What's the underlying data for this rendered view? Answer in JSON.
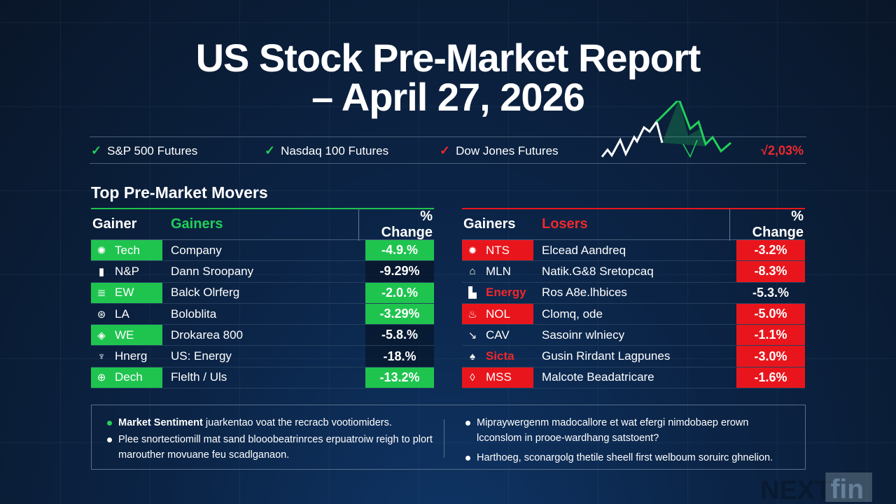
{
  "title": {
    "line1": "US Stock Pre-Market Report",
    "line2": "– April 27, 2026"
  },
  "futures": [
    {
      "label": "S&P 500 Futures",
      "icon": "check-up-icon",
      "color": "#22d05a"
    },
    {
      "label": "Nasdaq 100 Futures",
      "icon": "check-up-icon",
      "color": "#22d05a"
    },
    {
      "label": "Dow Jones Futures",
      "icon": "check-down-icon",
      "color": "#f0282c"
    }
  ],
  "futures_change": "√2,03%",
  "section_title": "Top Pre-Market Movers",
  "colors": {
    "green": "#1fc44f",
    "red": "#e8161c"
  },
  "gainers": {
    "header": {
      "col1": "Gainer",
      "col2": "Gainers",
      "col3": "% Change"
    },
    "rows": [
      {
        "ticker": "Tech",
        "company": "Company",
        "change": "-4.9.%",
        "icon": "gear-icon",
        "tick_hl": true,
        "chg_hl": true
      },
      {
        "ticker": "N&P",
        "company": "Dann Sroopany",
        "change": "-9.29%",
        "icon": "bar-chart-icon",
        "tick_hl": false,
        "chg_hl": false
      },
      {
        "ticker": "EW",
        "company": "Balck Olrferg",
        "change": "-2.0.%",
        "icon": "lines-icon",
        "tick_hl": true,
        "chg_hl": true
      },
      {
        "ticker": "LA",
        "company": "Boloblita",
        "change": "-3.29%",
        "icon": "plane-icon",
        "tick_hl": false,
        "chg_hl": true
      },
      {
        "ticker": "WE",
        "company": "Drokarea 800",
        "change": "-5.8.%",
        "icon": "arrows-icon",
        "tick_hl": true,
        "chg_hl": false
      },
      {
        "ticker": "Hnerg",
        "company": "US: Energy",
        "change": "-18.%",
        "icon": "energy-icon",
        "tick_hl": false,
        "chg_hl": false
      },
      {
        "ticker": "Dech",
        "company": "Flelth / Uls",
        "change": "-13.2%",
        "icon": "globe-icon",
        "tick_hl": true,
        "chg_hl": true
      }
    ]
  },
  "losers": {
    "header": {
      "col1": "Gainers",
      "col2": "Losers",
      "col3": "% Change"
    },
    "rows": [
      {
        "ticker": "NTS",
        "company": "Elcead Aandreq",
        "change": "-3.2%",
        "icon": "flame-icon",
        "tick_hl": true,
        "chg_hl": true,
        "tick_red": false
      },
      {
        "ticker": "MLN",
        "company": "Natik.G&8 Sretopcaq",
        "change": "-8.3%",
        "icon": "building-icon",
        "tick_hl": false,
        "chg_hl": true,
        "tick_red": false
      },
      {
        "ticker": "Energy",
        "company": "Ros A8e.lhbices",
        "change": "-5.3.%",
        "icon": "factory-icon",
        "tick_hl": false,
        "chg_hl": false,
        "tick_red": true
      },
      {
        "ticker": "NOL",
        "company": "Clomq, ode",
        "change": "-5.0%",
        "icon": "refinery-icon",
        "tick_hl": true,
        "chg_hl": true,
        "tick_red": false
      },
      {
        "ticker": "CAV",
        "company": "Sasoinr wlniecy",
        "change": "-1.1%",
        "icon": "chart-down-icon",
        "tick_hl": false,
        "chg_hl": true,
        "tick_red": false
      },
      {
        "ticker": "Sicta",
        "company": "Gusin Rirdant Lagpunes",
        "change": "-3.0%",
        "icon": "drops-icon",
        "tick_hl": false,
        "chg_hl": true,
        "tick_red": true
      },
      {
        "ticker": "MSS",
        "company": "Malcote Beadatricare",
        "change": "-1.6%",
        "icon": "drop-icon",
        "tick_hl": true,
        "chg_hl": true,
        "tick_red": false
      }
    ]
  },
  "notes": {
    "left": [
      {
        "bold": "Market Sentiment",
        "text": " juarkentao voat the recracb vootiomiders."
      },
      {
        "bold": "",
        "text": "Plee snortectiomill mat sand blooobeatrinrces erpuatroiw reigh to plort marouther movuane feu scadlganaon."
      }
    ],
    "right": [
      {
        "text": "Mipraywergenm madocallore et wat efergi nimdobaep erown lcconslom in prooe-wardhang satstoent?"
      },
      {
        "text": "Harthoeg, sconargolg thetile sheell first welboum soruirc ghnelion."
      }
    ]
  },
  "watermark": "NEXT fin"
}
